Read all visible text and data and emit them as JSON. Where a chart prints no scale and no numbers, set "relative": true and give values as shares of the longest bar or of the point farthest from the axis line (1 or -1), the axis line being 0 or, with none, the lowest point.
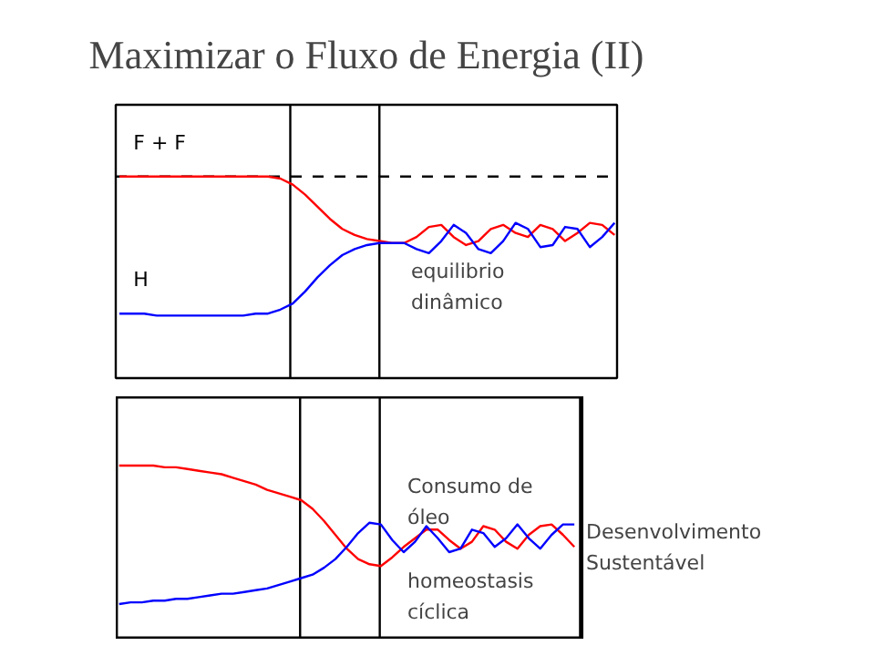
{
  "chart_data": [
    {
      "type": "line",
      "title": "Maximizar o Fluxo de Energia (II)",
      "relative": true,
      "legend": false,
      "grid": false,
      "categories": [
        null,
        null,
        null,
        null,
        null,
        null,
        null,
        null,
        null,
        null,
        null,
        null,
        null,
        null,
        null,
        null,
        null,
        null,
        null,
        null,
        null,
        null,
        null,
        null,
        null,
        null,
        null,
        null,
        null,
        null,
        null,
        null,
        null,
        null,
        null,
        null,
        null,
        null,
        null,
        null,
        null
      ],
      "series": [
        {
          "name": "F + F",
          "color": "#ff0000",
          "values": [
            1.0,
            1.0,
            1.0,
            1.0,
            1.0,
            1.0,
            1.0,
            1.0,
            1.0,
            1.0,
            1.0,
            1.0,
            1.0,
            0.99,
            0.96,
            0.91,
            0.85,
            0.79,
            0.74,
            0.71,
            0.69,
            0.68,
            0.67,
            0.67,
            0.7,
            0.75,
            0.76,
            0.7,
            0.66,
            0.68,
            0.74,
            0.76,
            0.72,
            0.7,
            0.76,
            0.74,
            0.68,
            0.72,
            0.77,
            0.76,
            0.71
          ]
        },
        {
          "name": "H",
          "color": "#0000ff",
          "values": [
            0.32,
            0.32,
            0.32,
            0.31,
            0.31,
            0.31,
            0.31,
            0.31,
            0.31,
            0.31,
            0.31,
            0.32,
            0.32,
            0.34,
            0.37,
            0.43,
            0.5,
            0.56,
            0.61,
            0.64,
            0.66,
            0.67,
            0.67,
            0.67,
            0.64,
            0.62,
            0.68,
            0.76,
            0.72,
            0.64,
            0.62,
            0.68,
            0.77,
            0.74,
            0.65,
            0.66,
            0.75,
            0.74,
            0.65,
            0.7,
            0.77
          ]
        }
      ],
      "ref_lines": [
        {
          "axis": "y",
          "value": 1.0,
          "color": "#000000",
          "line_style": "dashed"
        }
      ],
      "annotations": [
        "equilibrio dinâmico"
      ]
    },
    {
      "type": "line",
      "relative": true,
      "legend": false,
      "grid": false,
      "categories": [
        null,
        null,
        null,
        null,
        null,
        null,
        null,
        null,
        null,
        null,
        null,
        null,
        null,
        null,
        null,
        null,
        null,
        null,
        null,
        null,
        null,
        null,
        null,
        null,
        null,
        null,
        null,
        null,
        null,
        null,
        null,
        null,
        null,
        null,
        null,
        null,
        null,
        null,
        null,
        null,
        null
      ],
      "series": [
        {
          "color": "#ff0000",
          "values": [
            1.0,
            1.0,
            1.0,
            1.0,
            0.99,
            0.99,
            0.98,
            0.97,
            0.96,
            0.95,
            0.93,
            0.91,
            0.89,
            0.86,
            0.84,
            0.82,
            0.8,
            0.75,
            0.68,
            0.6,
            0.52,
            0.46,
            0.43,
            0.42,
            0.47,
            0.53,
            0.58,
            0.63,
            0.63,
            0.57,
            0.52,
            0.56,
            0.65,
            0.63,
            0.56,
            0.52,
            0.6,
            0.65,
            0.66,
            0.6,
            0.53
          ]
        },
        {
          "color": "#0000ff",
          "values": [
            0.2,
            0.21,
            0.21,
            0.22,
            0.22,
            0.23,
            0.23,
            0.24,
            0.25,
            0.26,
            0.26,
            0.27,
            0.28,
            0.29,
            0.31,
            0.33,
            0.35,
            0.37,
            0.41,
            0.46,
            0.53,
            0.61,
            0.67,
            0.66,
            0.57,
            0.5,
            0.56,
            0.65,
            0.58,
            0.5,
            0.52,
            0.63,
            0.61,
            0.53,
            0.58,
            0.66,
            0.58,
            0.52,
            0.6,
            0.66,
            0.66
          ]
        }
      ],
      "annotations": [
        "Consumo de óleo",
        "homeostasis cíclica",
        "Desenvolvimento Sustentável"
      ]
    }
  ]
}
